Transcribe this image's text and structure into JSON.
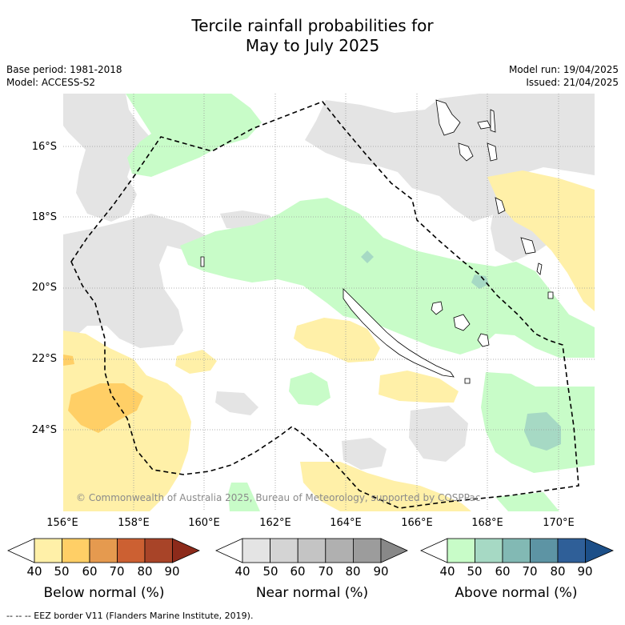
{
  "title_line1": "Tercile rainfall probabilities for",
  "title_line2": "May to July 2025",
  "base_period": "Base period: 1981-2018",
  "model": "Model: ACCESS-S2",
  "model_run": "Model run: 19/04/2025",
  "issued": "Issued: 21/04/2025",
  "copyright": "© Commonwealth of Australia 2025, Bureau of Meteorology, supported by COSPPac",
  "eez_note": "--  --  -- EEZ border V11 (Flanders Marine Institute, 2019).",
  "map": {
    "lat_labels": [
      "16°S",
      "18°S",
      "20°S",
      "22°S",
      "24°S"
    ],
    "lon_labels": [
      "156°E",
      "158°E",
      "160°E",
      "162°E",
      "164°E",
      "166°E",
      "168°E",
      "170°E"
    ],
    "lon_range": [
      154.8,
      171.3
    ],
    "lat_range": [
      -26.5,
      -14.7
    ],
    "grid": true
  },
  "colors": {
    "below": [
      "#fff0a8",
      "#ffcf66",
      "#e59a4f",
      "#cc6032",
      "#a84428",
      "#8c2a1a"
    ],
    "near": [
      "#e4e4e4",
      "#d4d4d4",
      "#c4c4c4",
      "#b0b0b0",
      "#9c9c9c",
      "#888888"
    ],
    "above": [
      "#c8fcc8",
      "#a6d9c4",
      "#82b9b4",
      "#5d94a4",
      "#2f5f98",
      "#1c4f88"
    ]
  },
  "colorbars": [
    {
      "label": "Below normal (%)",
      "ticks": [
        "40",
        "50",
        "60",
        "70",
        "80",
        "90"
      ]
    },
    {
      "label": "Near normal (%)",
      "ticks": [
        "40",
        "50",
        "60",
        "70",
        "80",
        "90"
      ]
    },
    {
      "label": "Above normal (%)",
      "ticks": [
        "40",
        "50",
        "60",
        "70",
        "80",
        "90"
      ]
    }
  ]
}
